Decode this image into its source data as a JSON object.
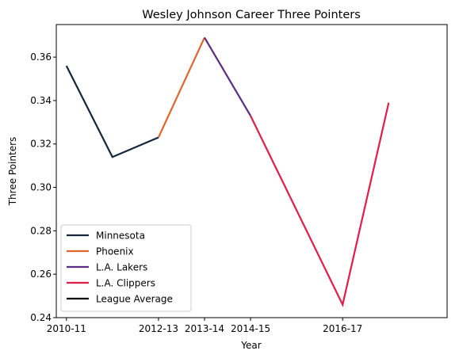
{
  "chart_data": {
    "type": "line",
    "title": "Wesley Johnson  Career Three Pointers",
    "xlabel": "Year",
    "ylabel": "Three Pointers",
    "x_ticks": [
      "2010-11",
      "2012-13",
      "2013-14",
      "2014-15",
      "2016-17"
    ],
    "y_ticks": [
      "0.24",
      "0.26",
      "0.28",
      "0.30",
      "0.32",
      "0.34",
      "0.36"
    ],
    "ylim": [
      0.24,
      0.375
    ],
    "grid": false,
    "legend_position": "lower-left",
    "legend": [
      {
        "name": "Minnesota",
        "color": "#14263b"
      },
      {
        "name": "Phoenix",
        "color": "#e0662b"
      },
      {
        "name": "L.A. Lakers",
        "color": "#5a2d82"
      },
      {
        "name": "L.A. Clippers",
        "color": "#e11d48"
      },
      {
        "name": "League Average",
        "color": "#000000"
      }
    ],
    "series": [
      {
        "name": "Minnesota",
        "color": "#14263b",
        "points": [
          {
            "x": "2010-11",
            "y": 0.356
          },
          {
            "x": "2011-12",
            "y": 0.314
          },
          {
            "x": "2012-13",
            "y": 0.323
          }
        ]
      },
      {
        "name": "Phoenix",
        "color": "#e0662b",
        "points": [
          {
            "x": "2012-13",
            "y": 0.323
          },
          {
            "x": "2013-14",
            "y": 0.369
          }
        ]
      },
      {
        "name": "L.A. Lakers",
        "color": "#5a2d82",
        "points": [
          {
            "x": "2013-14",
            "y": 0.369
          },
          {
            "x": "2014-15",
            "y": 0.333
          }
        ]
      },
      {
        "name": "L.A. Clippers",
        "color": "#e11d48",
        "points": [
          {
            "x": "2014-15",
            "y": 0.333
          },
          {
            "x": "2016-17",
            "y": 0.246
          },
          {
            "x": "2017-18",
            "y": 0.339
          }
        ]
      }
    ]
  }
}
